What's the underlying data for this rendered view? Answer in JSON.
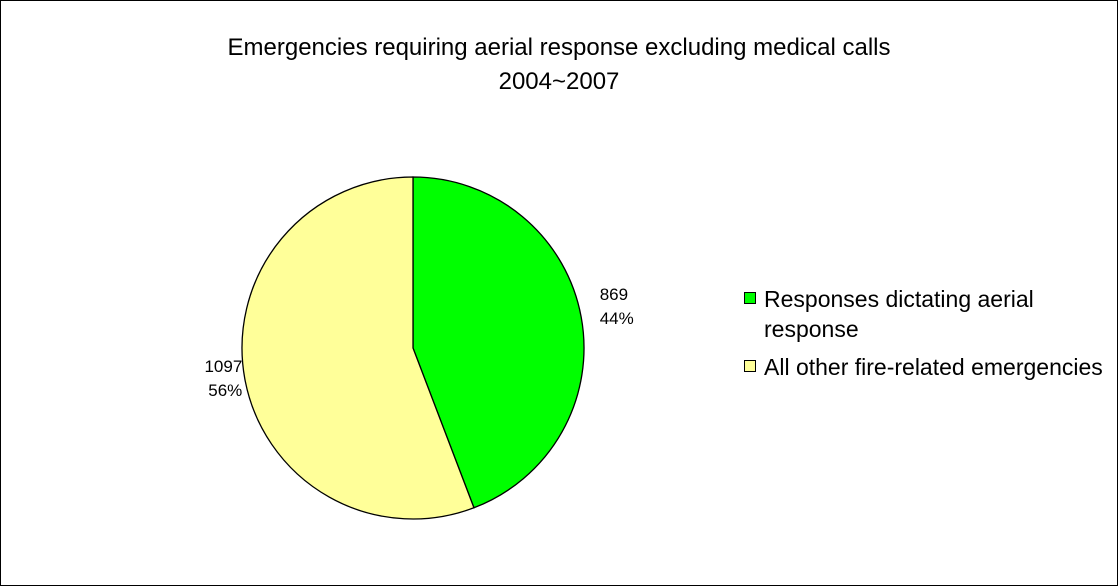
{
  "chart_data": {
    "type": "pie",
    "title": "Emergencies requiring aerial response excluding medical calls",
    "subtitle": "2004~2007",
    "legend_position": "right",
    "slices": [
      {
        "label": "Responses dictating aerial response",
        "value": 869,
        "percent_label": "44%",
        "value_label": "869",
        "color": "#00ff00"
      },
      {
        "label": "All other fire-related emergencies",
        "value": 1097,
        "percent_label": "56%",
        "value_label": "1097",
        "color": "#ffff99"
      }
    ],
    "outline_color": "#000000"
  }
}
